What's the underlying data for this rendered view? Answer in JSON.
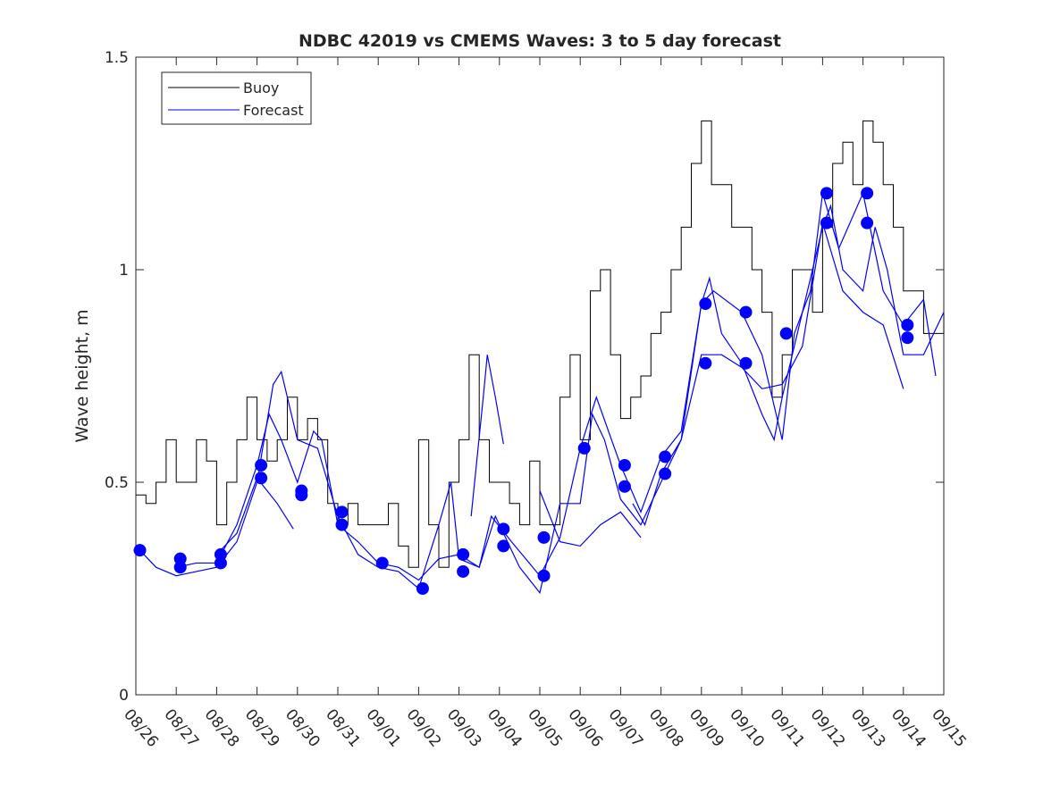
{
  "chart_data": {
    "type": "line",
    "title": "NDBC 42019 vs CMEMS Waves: 3 to 5 day forecast",
    "xlabel": "",
    "ylabel": "Wave height, m",
    "ylim": [
      0,
      1.5
    ],
    "xlim_days": [
      0,
      20
    ],
    "yticks": [
      "0",
      "0.5",
      "1",
      "1.5"
    ],
    "ytick_values": [
      0,
      0.5,
      1,
      1.5
    ],
    "xticks": [
      "08/26",
      "08/27",
      "08/28",
      "08/29",
      "08/30",
      "08/31",
      "09/01",
      "09/02",
      "09/03",
      "09/04",
      "09/05",
      "09/06",
      "09/07",
      "09/08",
      "09/09",
      "09/10",
      "09/11",
      "09/12",
      "09/13",
      "09/14",
      "09/15"
    ],
    "legend": {
      "placement": "top-left",
      "entries": [
        "Buoy",
        "Forecast"
      ]
    },
    "colors": {
      "buoy": "#000000",
      "forecast": "#0000ff"
    },
    "series": [
      {
        "name": "Buoy",
        "step_days": 0.25,
        "values": [
          0.47,
          0.45,
          0.5,
          0.6,
          0.5,
          0.5,
          0.6,
          0.55,
          0.4,
          0.5,
          0.6,
          0.7,
          0.6,
          0.55,
          0.6,
          0.7,
          0.6,
          0.65,
          0.6,
          0.45,
          0.4,
          0.45,
          0.4,
          0.4,
          0.4,
          0.45,
          0.35,
          0.3,
          0.6,
          0.4,
          0.3,
          0.5,
          0.6,
          0.8,
          0.6,
          0.5,
          0.5,
          0.45,
          0.4,
          0.55,
          0.4,
          0.4,
          0.7,
          0.8,
          0.6,
          0.95,
          1.0,
          0.8,
          0.65,
          0.7,
          0.75,
          0.85,
          0.9,
          1.0,
          1.1,
          1.25,
          1.35,
          1.2,
          1.2,
          1.1,
          1.1,
          1.0,
          0.9,
          0.7,
          0.8,
          1.0,
          1.0,
          0.9,
          1.1,
          1.25,
          1.3,
          1.2,
          1.35,
          1.3,
          1.2,
          1.1,
          0.95,
          0.95,
          0.85,
          0.85,
          0.9
        ]
      },
      {
        "name": "Forecast",
        "points": [
          [
            0.1,
            0.34
          ],
          [
            0.5,
            0.3
          ],
          [
            1,
            0.28
          ],
          [
            1.5,
            0.29
          ],
          [
            2,
            0.3
          ],
          [
            2.5,
            0.36
          ],
          [
            3,
            0.5
          ],
          [
            3.4,
            0.73
          ],
          [
            3.6,
            0.76
          ],
          [
            4,
            0.6
          ],
          [
            4.5,
            0.58
          ],
          [
            5,
            0.42
          ],
          [
            5.5,
            0.33
          ],
          [
            6,
            0.3
          ],
          [
            6.5,
            0.29
          ],
          [
            7,
            0.25
          ],
          [
            7.5,
            0.4
          ],
          [
            7.8,
            0.5
          ],
          [
            8,
            0.32
          ],
          [
            8.5,
            0.3
          ],
          [
            8.9,
            0.42
          ],
          [
            9.5,
            0.3
          ],
          [
            10,
            0.24
          ],
          [
            10.5,
            0.45
          ],
          [
            11,
            0.45
          ],
          [
            11.3,
            0.66
          ],
          [
            11.6,
            0.6
          ],
          [
            12,
            0.46
          ],
          [
            12.5,
            0.4
          ],
          [
            13,
            0.5
          ],
          [
            13.5,
            0.6
          ],
          [
            14,
            0.92
          ],
          [
            14.2,
            0.98
          ],
          [
            14.5,
            0.85
          ],
          [
            15,
            0.78
          ],
          [
            15.5,
            0.66
          ],
          [
            15.8,
            0.6
          ],
          [
            16,
            0.7
          ],
          [
            16.5,
            0.9
          ],
          [
            17,
            1.1
          ],
          [
            17.2,
            1.15
          ],
          [
            17.5,
            1.0
          ],
          [
            18,
            0.95
          ],
          [
            18.3,
            1.1
          ],
          [
            18.6,
            1.0
          ],
          [
            19,
            0.8
          ],
          [
            19.5,
            0.8
          ],
          [
            20,
            0.9
          ]
        ]
      },
      {
        "name": "Forecast",
        "points": [
          [
            1,
            0.3
          ],
          [
            1.5,
            0.31
          ],
          [
            2,
            0.31
          ],
          [
            2.5,
            0.4
          ],
          [
            3,
            0.54
          ],
          [
            3.3,
            0.66
          ],
          [
            3.6,
            0.6
          ],
          [
            4,
            0.5
          ],
          [
            4.4,
            0.62
          ],
          [
            4.6,
            0.6
          ],
          [
            5,
            0.4
          ],
          [
            5.5,
            0.36
          ],
          [
            6,
            0.31
          ],
          [
            6.5,
            0.3
          ],
          [
            7,
            0.27
          ],
          [
            7.5,
            0.32
          ],
          [
            8,
            0.33
          ],
          [
            8.5,
            0.3
          ],
          [
            8.8,
            0.42
          ],
          [
            9.3,
            0.36
          ],
          [
            10,
            0.28
          ],
          [
            10.5,
            0.37
          ],
          [
            11,
            0.58
          ],
          [
            11.4,
            0.7
          ],
          [
            12,
            0.54
          ],
          [
            12.5,
            0.43
          ],
          [
            13,
            0.56
          ],
          [
            13.5,
            0.62
          ],
          [
            14,
            0.92
          ],
          [
            14.3,
            0.95
          ],
          [
            15,
            0.9
          ],
          [
            15.5,
            0.8
          ],
          [
            16,
            0.6
          ],
          [
            16.3,
            0.85
          ],
          [
            16.7,
            0.95
          ],
          [
            17,
            1.18
          ],
          [
            17.4,
            1.05
          ],
          [
            18,
            1.18
          ],
          [
            18.5,
            0.95
          ],
          [
            19,
            0.87
          ],
          [
            19.5,
            0.93
          ],
          [
            19.8,
            0.75
          ]
        ]
      },
      {
        "name": "Forecast",
        "points": [
          [
            2,
            0.33
          ],
          [
            2.5,
            0.38
          ],
          [
            3,
            0.51
          ],
          [
            3.5,
            0.45
          ],
          [
            3.9,
            0.39
          ]
        ]
      },
      {
        "name": "Forecast",
        "points": [
          [
            8.3,
            0.42
          ],
          [
            8.6,
            0.7
          ],
          [
            8.7,
            0.8
          ],
          [
            8.9,
            0.7
          ],
          [
            9.1,
            0.59
          ]
        ]
      },
      {
        "name": "Forecast",
        "points": [
          [
            12.3,
            0.45
          ],
          [
            12.6,
            0.4
          ],
          [
            13,
            0.52
          ],
          [
            13.5,
            0.6
          ],
          [
            14,
            0.8
          ],
          [
            14.5,
            0.8
          ],
          [
            15,
            0.77
          ],
          [
            15.5,
            0.72
          ],
          [
            16,
            0.73
          ],
          [
            16.5,
            0.82
          ],
          [
            17,
            1.11
          ],
          [
            17.5,
            0.95
          ],
          [
            18,
            0.9
          ],
          [
            18.5,
            0.87
          ],
          [
            19,
            0.72
          ]
        ]
      },
      {
        "name": "Forecast",
        "points": [
          [
            10,
            0.48
          ],
          [
            10.5,
            0.36
          ],
          [
            11,
            0.35
          ],
          [
            11.5,
            0.4
          ],
          [
            12,
            0.43
          ],
          [
            12.5,
            0.37
          ]
        ]
      }
    ],
    "markers": {
      "name": "Forecast day points",
      "points": [
        [
          0.1,
          0.34
        ],
        [
          1.1,
          0.32
        ],
        [
          1.1,
          0.3
        ],
        [
          2.1,
          0.33
        ],
        [
          2.1,
          0.31
        ],
        [
          3.1,
          0.54
        ],
        [
          3.1,
          0.51
        ],
        [
          4.1,
          0.48
        ],
        [
          4.1,
          0.47
        ],
        [
          5.1,
          0.43
        ],
        [
          5.1,
          0.4
        ],
        [
          6.1,
          0.31
        ],
        [
          7.1,
          0.25
        ],
        [
          8.1,
          0.33
        ],
        [
          8.1,
          0.29
        ],
        [
          9.1,
          0.39
        ],
        [
          9.1,
          0.35
        ],
        [
          10.1,
          0.37
        ],
        [
          10.1,
          0.28
        ],
        [
          11.1,
          0.58
        ],
        [
          12.1,
          0.54
        ],
        [
          12.1,
          0.49
        ],
        [
          13.1,
          0.56
        ],
        [
          13.1,
          0.52
        ],
        [
          14.1,
          0.92
        ],
        [
          14.1,
          0.78
        ],
        [
          15.1,
          0.9
        ],
        [
          15.1,
          0.78
        ],
        [
          16.1,
          0.85
        ],
        [
          17.1,
          1.18
        ],
        [
          17.1,
          1.11
        ],
        [
          18.1,
          1.18
        ],
        [
          18.1,
          1.11
        ],
        [
          19.1,
          0.87
        ],
        [
          19.1,
          0.84
        ]
      ]
    }
  }
}
